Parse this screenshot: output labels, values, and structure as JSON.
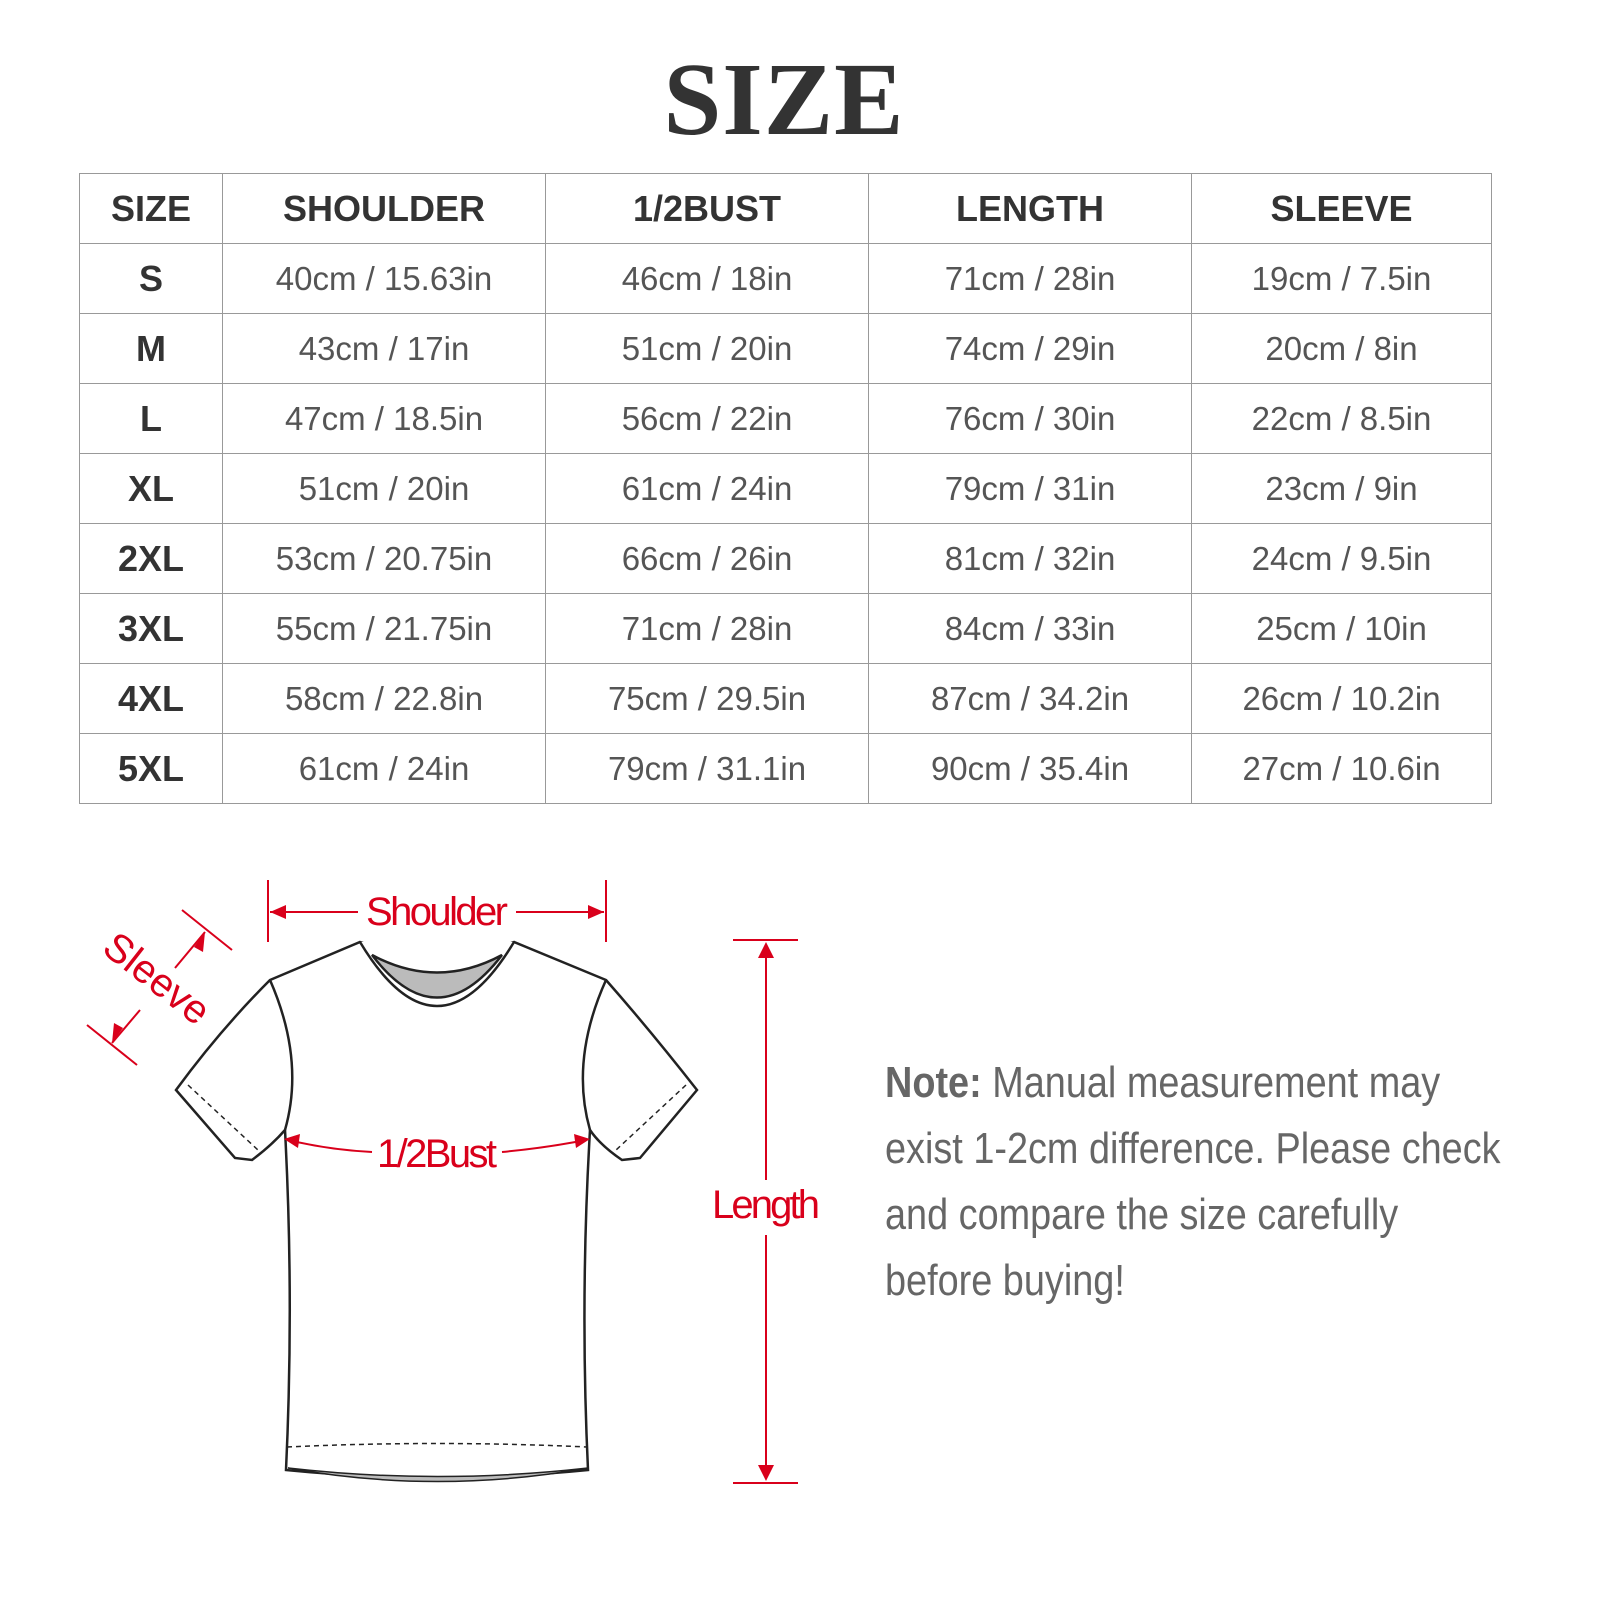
{
  "title": "SIZE",
  "table": {
    "headers": [
      "SIZE",
      "SHOULDER",
      "1/2BUST",
      "LENGTH",
      "SLEEVE"
    ],
    "rows": [
      [
        "S",
        "40cm / 15.63in",
        "46cm / 18in",
        "71cm / 28in",
        "19cm / 7.5in"
      ],
      [
        "M",
        "43cm / 17in",
        "51cm / 20in",
        "74cm / 29in",
        "20cm / 8in"
      ],
      [
        "L",
        "47cm / 18.5in",
        "56cm / 22in",
        "76cm / 30in",
        "22cm / 8.5in"
      ],
      [
        "XL",
        "51cm / 20in",
        "61cm / 24in",
        "79cm / 31in",
        "23cm / 9in"
      ],
      [
        "2XL",
        "53cm / 20.75in",
        "66cm / 26in",
        "81cm / 32in",
        "24cm / 9.5in"
      ],
      [
        "3XL",
        "55cm / 21.75in",
        "71cm / 28in",
        "84cm / 33in",
        "25cm / 10in"
      ],
      [
        "4XL",
        "58cm / 22.8in",
        "75cm / 29.5in",
        "87cm / 34.2in",
        "26cm / 10.2in"
      ],
      [
        "5XL",
        "61cm / 24in",
        "79cm / 31.1in",
        "90cm / 35.4in",
        "27cm / 10.6in"
      ]
    ]
  },
  "diagram": {
    "shoulder_label": "Shoulder",
    "sleeve_label": "Sleeve",
    "bust_label": "1/2Bust",
    "length_label": "Length",
    "accent_color": "#d9001b"
  },
  "note": {
    "label": "Note:",
    "text": " Manual measurement may exist 1-2cm difference. Please check and compare the size carefully before buying!"
  }
}
